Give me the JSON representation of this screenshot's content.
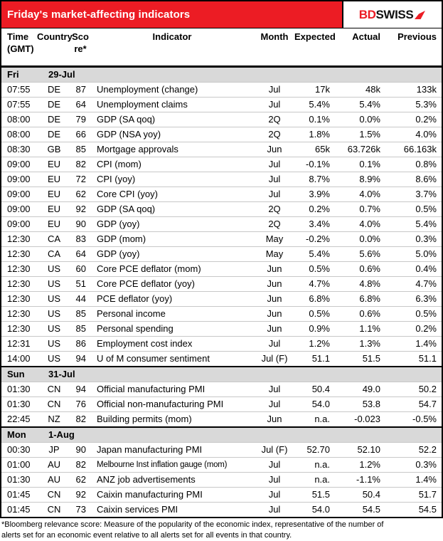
{
  "header": {
    "title": "Friday's market-affecting indicators",
    "logo": {
      "bd": "BD",
      "swiss": "SWISS"
    }
  },
  "columns": [
    {
      "label_lines": [
        "Time",
        "(GMT)"
      ]
    },
    {
      "label_lines": [
        "Country"
      ]
    },
    {
      "label_lines": [
        "Sco",
        "re*"
      ]
    },
    {
      "label_lines": [
        "Indicator"
      ]
    },
    {
      "label_lines": [
        "Month"
      ]
    },
    {
      "label_lines": [
        "Expected"
      ]
    },
    {
      "label_lines": [
        "Actual"
      ]
    },
    {
      "label_lines": [
        "Previous"
      ]
    }
  ],
  "sections": [
    {
      "day": "Fri",
      "date": "29-Jul",
      "rows": [
        {
          "time": "07:55",
          "country": "DE",
          "score": "87",
          "indicator": "Unemployment (change)",
          "month": "Jul",
          "expected": "17k",
          "actual": "48k",
          "previous": "133k"
        },
        {
          "time": "07:55",
          "country": "DE",
          "score": "64",
          "indicator": "Unemployment claims",
          "month": "Jul",
          "expected": "5.4%",
          "actual": "5.4%",
          "previous": "5.3%"
        },
        {
          "time": "08:00",
          "country": "DE",
          "score": "79",
          "indicator": "GDP (SA qoq)",
          "month": "2Q",
          "expected": "0.1%",
          "actual": "0.0%",
          "previous": "0.2%"
        },
        {
          "time": "08:00",
          "country": "DE",
          "score": "66",
          "indicator": "GDP (NSA yoy)",
          "month": "2Q",
          "expected": "1.8%",
          "actual": "1.5%",
          "previous": "4.0%"
        },
        {
          "time": "08:30",
          "country": "GB",
          "score": "85",
          "indicator": "Mortgage approvals",
          "month": "Jun",
          "expected": "65k",
          "actual": "63.726k",
          "previous": "66.163k"
        },
        {
          "time": "09:00",
          "country": "EU",
          "score": "82",
          "indicator": "CPI (mom)",
          "month": "Jul",
          "expected": "-0.1%",
          "actual": "0.1%",
          "previous": "0.8%"
        },
        {
          "time": "09:00",
          "country": "EU",
          "score": "72",
          "indicator": "CPI (yoy)",
          "month": "Jul",
          "expected": "8.7%",
          "actual": "8.9%",
          "previous": "8.6%"
        },
        {
          "time": "09:00",
          "country": "EU",
          "score": "62",
          "indicator": "Core CPI (yoy)",
          "month": "Jul",
          "expected": "3.9%",
          "actual": "4.0%",
          "previous": "3.7%"
        },
        {
          "time": "09:00",
          "country": "EU",
          "score": "92",
          "indicator": "GDP (SA qoq)",
          "month": "2Q",
          "expected": "0.2%",
          "actual": "0.7%",
          "previous": "0.5%"
        },
        {
          "time": "09:00",
          "country": "EU",
          "score": "90",
          "indicator": "GDP (yoy)",
          "month": "2Q",
          "expected": "3.4%",
          "actual": "4.0%",
          "previous": "5.4%"
        },
        {
          "time": "12:30",
          "country": "CA",
          "score": "83",
          "indicator": "GDP (mom)",
          "month": "May",
          "expected": "-0.2%",
          "actual": "0.0%",
          "previous": "0.3%"
        },
        {
          "time": "12:30",
          "country": "CA",
          "score": "64",
          "indicator": "GDP (yoy)",
          "month": "May",
          "expected": "5.4%",
          "actual": "5.6%",
          "previous": "5.0%"
        },
        {
          "time": "12:30",
          "country": "US",
          "score": "60",
          "indicator": "Core PCE deflator (mom)",
          "month": "Jun",
          "expected": "0.5%",
          "actual": "0.6%",
          "previous": "0.4%"
        },
        {
          "time": "12:30",
          "country": "US",
          "score": "51",
          "indicator": "Core PCE deflator (yoy)",
          "month": "Jun",
          "expected": "4.7%",
          "actual": "4.8%",
          "previous": "4.7%"
        },
        {
          "time": "12:30",
          "country": "US",
          "score": "44",
          "indicator": "PCE deflator (yoy)",
          "month": "Jun",
          "expected": "6.8%",
          "actual": "6.8%",
          "previous": "6.3%"
        },
        {
          "time": "12:30",
          "country": "US",
          "score": "85",
          "indicator": "Personal income",
          "month": "Jun",
          "expected": "0.5%",
          "actual": "0.6%",
          "previous": "0.5%"
        },
        {
          "time": "12:30",
          "country": "US",
          "score": "85",
          "indicator": "Personal spending",
          "month": "Jun",
          "expected": "0.9%",
          "actual": "1.1%",
          "previous": "0.2%"
        },
        {
          "time": "12:31",
          "country": "US",
          "score": "86",
          "indicator": "Employment cost index",
          "month": "Jul",
          "expected": "1.2%",
          "actual": "1.3%",
          "previous": "1.4%"
        },
        {
          "time": "14:00",
          "country": "US",
          "score": "94",
          "indicator": "U of M consumer sentiment",
          "month": "Jul (F)",
          "expected": "51.1",
          "actual": "51.5",
          "previous": "51.1"
        }
      ]
    },
    {
      "day": "Sun",
      "date": "31-Jul",
      "rows": [
        {
          "time": "01:30",
          "country": "CN",
          "score": "94",
          "indicator": "Official manufacturing PMI",
          "month": "Jul",
          "expected": "50.4",
          "actual": "49.0",
          "previous": "50.2"
        },
        {
          "time": "01:30",
          "country": "CN",
          "score": "76",
          "indicator": "Official non-manufacturing PMI",
          "month": "Jul",
          "expected": "54.0",
          "actual": "53.8",
          "previous": "54.7"
        },
        {
          "time": "22:45",
          "country": "NZ",
          "score": "82",
          "indicator": "Building permits (mom)",
          "month": "Jun",
          "expected": "n.a.",
          "actual": "-0.023",
          "previous": "-0.5%"
        }
      ]
    },
    {
      "day": "Mon",
      "date": "1-Aug",
      "rows": [
        {
          "time": "00:30",
          "country": "JP",
          "score": "90",
          "indicator": "Japan manufacturing PMI",
          "month": "Jul (F)",
          "expected": "52.70",
          "actual": "52.10",
          "previous": "52.2"
        },
        {
          "time": "01:00",
          "country": "AU",
          "score": "82",
          "indicator": "Melbourne Inst inflation gauge (mom)",
          "month": "Jul",
          "expected": "n.a.",
          "actual": "1.2%",
          "previous": "0.3%"
        },
        {
          "time": "01:30",
          "country": "AU",
          "score": "62",
          "indicator": "ANZ job advertisements",
          "month": "Jul",
          "expected": "n.a.",
          "actual": "-1.1%",
          "previous": "1.4%"
        },
        {
          "time": "01:45",
          "country": "CN",
          "score": "92",
          "indicator": "Caixin manufacturing PMI",
          "month": "Jul",
          "expected": "51.5",
          "actual": "50.4",
          "previous": "51.7"
        },
        {
          "time": "01:45",
          "country": "CN",
          "score": "73",
          "indicator": "Caixin services PMI",
          "month": "Jul",
          "expected": "54.0",
          "actual": "54.5",
          "previous": "54.5"
        }
      ]
    }
  ],
  "footnote": "*Bloomberg relevance score:  Measure of the popularity of the economic index, representative of the number of alerts set for an economic event relative to all alerts set for all events in that country.",
  "colors": {
    "accent_red": "#EC1C24",
    "section_gray": "#D9D9D9",
    "grid_gray": "#C8C8C8",
    "border_black": "#000000"
  }
}
